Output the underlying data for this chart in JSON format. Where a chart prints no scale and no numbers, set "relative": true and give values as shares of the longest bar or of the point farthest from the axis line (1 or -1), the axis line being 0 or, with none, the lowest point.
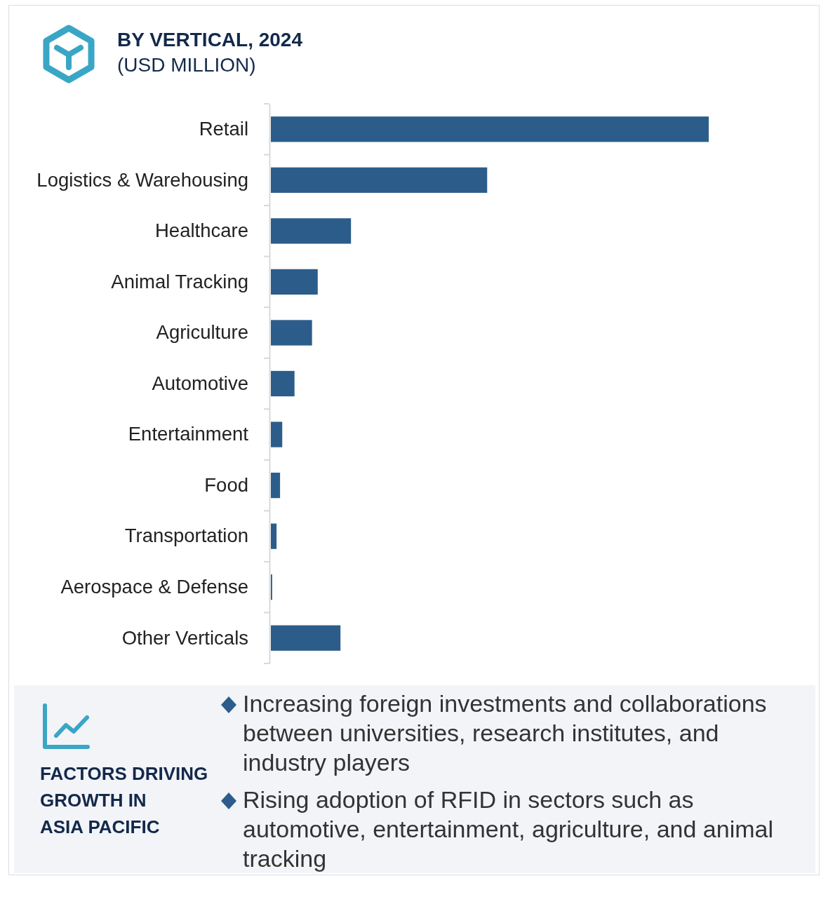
{
  "chart_data": {
    "type": "bar",
    "orientation": "horizontal",
    "relative": true,
    "title": "BY VERTICAL, 2024",
    "subtitle": "(USD MILLION)",
    "categories": [
      "Retail",
      "Logistics & Warehousing",
      "Healthcare",
      "Animal Tracking",
      "Agriculture",
      "Automotive",
      "Entertainment",
      "Food",
      "Transportation",
      "Aerospace & Defense",
      "Other Verticals"
    ],
    "values": [
      1,
      0.494,
      0.183,
      0.107,
      0.094,
      0.054,
      0.026,
      0.021,
      0.013,
      0.003,
      0.159
    ],
    "color": "#2c5d8a",
    "annotations": [
      "FACTORS DRIVING\nGROWTH IN\nASIA PACIFIC",
      "Increasing foreign investments and collaborations between universities, research institutes, and industry players",
      "Rising adoption of RFID in sectors such as automotive, entertainment, agriculture, and animal tracking"
    ]
  }
}
